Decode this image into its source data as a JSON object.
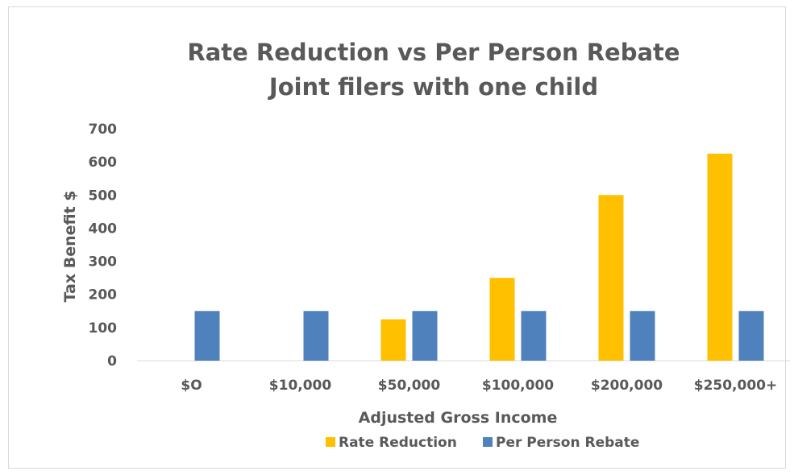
{
  "chart_data": {
    "type": "bar",
    "title": "Rate Reduction vs Per Person Rebate",
    "subtitle": "Joint filers with one child",
    "xlabel": "Adjusted Gross Income",
    "ylabel": "Tax Benefit $",
    "categories": [
      "$O",
      "$10,000",
      "$50,000",
      "$100,000",
      "$200,000",
      "$250,000+"
    ],
    "series": [
      {
        "name": "Rate Reduction",
        "color": "#ffc000",
        "values": [
          0,
          0,
          125,
          250,
          500,
          625
        ]
      },
      {
        "name": "Per Person Rebate",
        "color": "#4f81bd",
        "values": [
          150,
          150,
          150,
          150,
          150,
          150
        ]
      }
    ],
    "ylim": [
      0,
      700
    ],
    "yticks": [
      0,
      100,
      200,
      300,
      400,
      500,
      600,
      700
    ],
    "grid": false,
    "legend": "bottom"
  }
}
